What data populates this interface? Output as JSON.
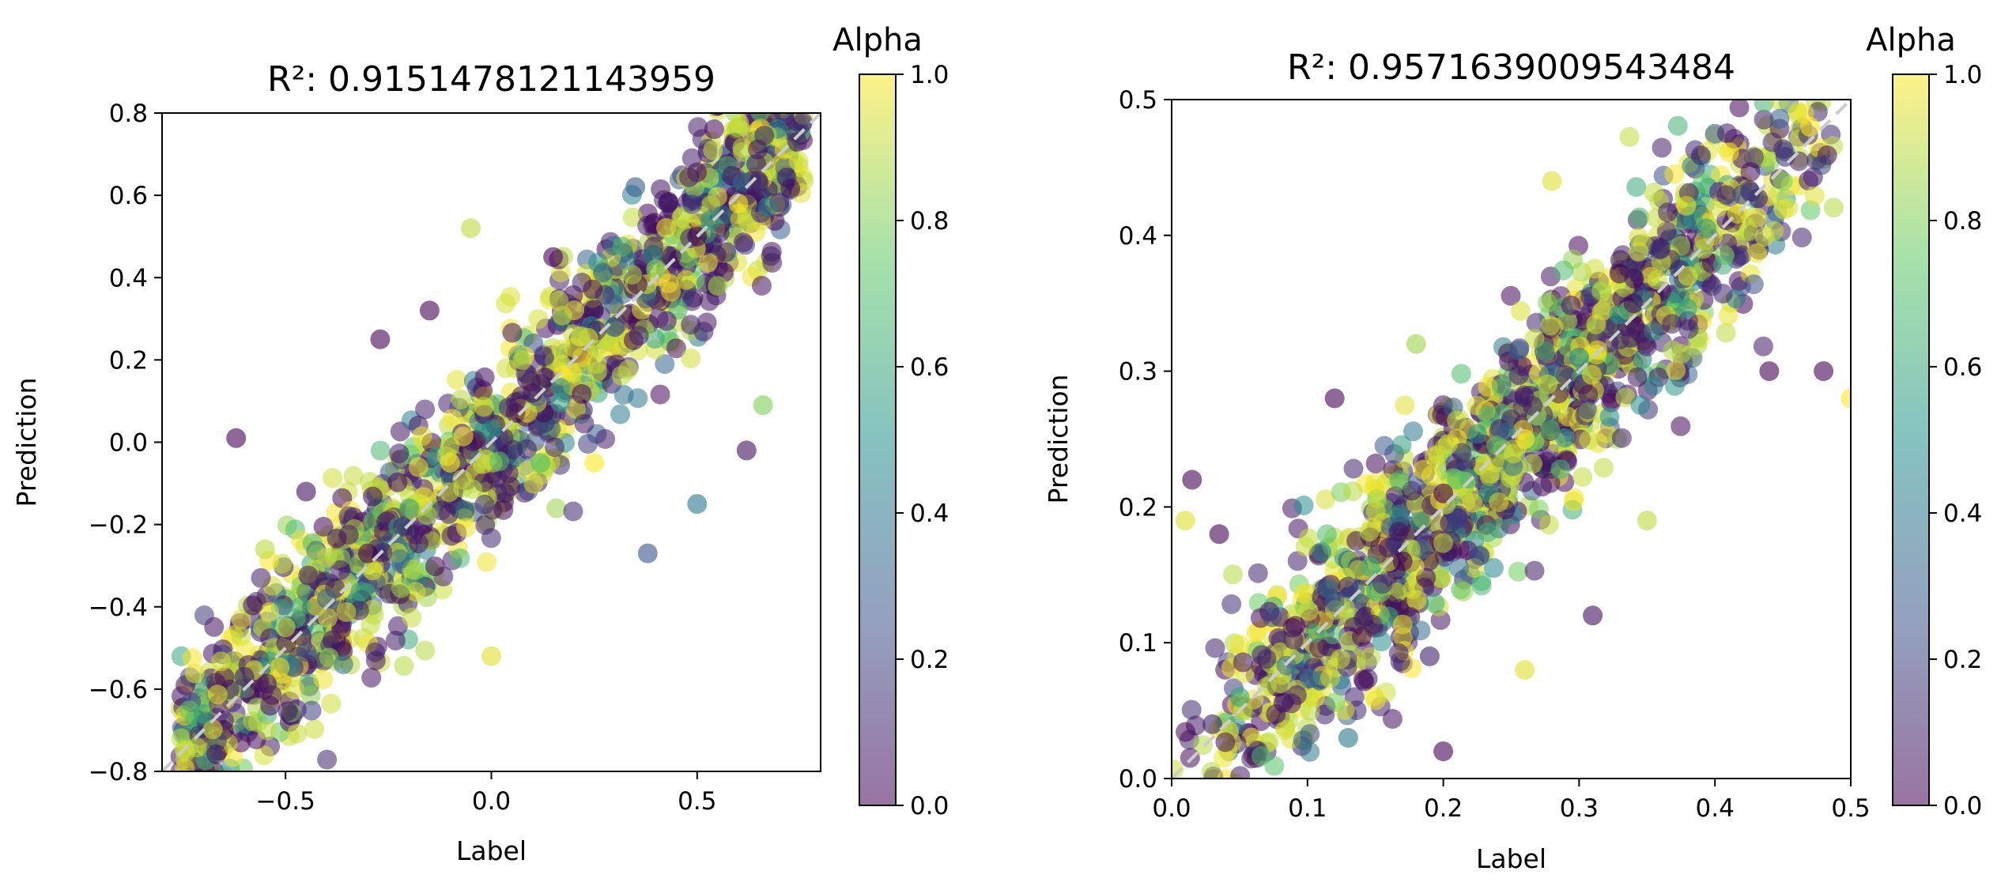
{
  "chart_data": [
    {
      "type": "scatter",
      "title": "R²: 0.9151478121143959",
      "xlabel": "Label",
      "ylabel": "Prediction",
      "xlim": [
        -0.8,
        0.8
      ],
      "ylim": [
        -0.8,
        0.8
      ],
      "x_ticks": [
        -0.5,
        0.0,
        0.5
      ],
      "x_tick_labels": [
        "−0.5",
        "0.0",
        "0.5"
      ],
      "y_ticks": [
        -0.8,
        -0.6,
        -0.4,
        -0.2,
        0.0,
        0.2,
        0.4,
        0.6,
        0.8
      ],
      "y_tick_labels": [
        "−0.8",
        "−0.6",
        "−0.4",
        "−0.2",
        "0.0",
        "0.2",
        "0.4",
        "0.6",
        "0.8"
      ],
      "reference_line": {
        "from": [
          -0.8,
          -0.8
        ],
        "to": [
          0.8,
          0.8
        ],
        "style": "dashed",
        "color": "#cccccc"
      },
      "colorbar": {
        "label": "Alpha",
        "range": [
          0.0,
          1.0
        ],
        "ticks": [
          0.0,
          0.2,
          0.4,
          0.6,
          0.8,
          1.0
        ],
        "tick_labels": [
          "0.0",
          "0.2",
          "0.4",
          "0.6",
          "0.8",
          "1.0"
        ],
        "colormap": "viridis"
      },
      "points": [
        [
          -0.6,
          -0.57,
          0.1
        ],
        [
          -0.5,
          -0.45,
          0.9
        ],
        [
          -0.4,
          -0.38,
          0.3
        ],
        [
          -0.3,
          -0.27,
          0.0
        ],
        [
          -0.2,
          -0.16,
          0.7
        ],
        [
          -0.1,
          -0.05,
          1.0
        ],
        [
          0.0,
          0.03,
          0.5
        ],
        [
          0.1,
          0.12,
          0.05
        ],
        [
          0.2,
          0.23,
          0.95
        ],
        [
          0.3,
          0.28,
          0.2
        ],
        [
          0.4,
          0.42,
          0.8
        ],
        [
          0.5,
          0.5,
          0.0
        ],
        [
          0.6,
          0.58,
          1.0
        ],
        [
          -0.7,
          -0.66,
          0.6
        ],
        [
          0.65,
          0.63,
          0.1
        ],
        [
          -0.62,
          0.01,
          0.0
        ],
        [
          -0.27,
          0.25,
          0.0
        ],
        [
          -0.15,
          0.32,
          0.0
        ],
        [
          0.5,
          -0.15,
          0.4
        ],
        [
          0.62,
          -0.02,
          0.05
        ],
        [
          0.66,
          0.09,
          0.8
        ],
        [
          0.38,
          -0.27,
          0.25
        ],
        [
          0.0,
          -0.52,
          0.95
        ],
        [
          -0.55,
          -0.26,
          0.9
        ],
        [
          0.25,
          -0.05,
          1.0
        ],
        [
          -0.45,
          -0.12,
          0.05
        ],
        [
          0.15,
          0.45,
          0.0
        ],
        [
          -0.05,
          0.52,
          0.9
        ],
        [
          0.35,
          0.62,
          0.3
        ],
        [
          0.55,
          0.38,
          0.85
        ]
      ]
    },
    {
      "type": "scatter",
      "title": "R²: 0.9571639009543484",
      "xlabel": "Label",
      "ylabel": "Prediction",
      "xlim": [
        0.0,
        0.5
      ],
      "ylim": [
        0.0,
        0.5
      ],
      "x_ticks": [
        0.0,
        0.1,
        0.2,
        0.3,
        0.4,
        0.5
      ],
      "x_tick_labels": [
        "0.0",
        "0.1",
        "0.2",
        "0.3",
        "0.4",
        "0.5"
      ],
      "y_ticks": [
        0.0,
        0.1,
        0.2,
        0.3,
        0.4,
        0.5
      ],
      "y_tick_labels": [
        "0.0",
        "0.1",
        "0.2",
        "0.3",
        "0.4",
        "0.5"
      ],
      "reference_line": {
        "from": [
          0.0,
          0.0
        ],
        "to": [
          0.5,
          0.5
        ],
        "style": "dashed",
        "color": "#cccccc"
      },
      "colorbar": {
        "label": "Alpha",
        "range": [
          0.0,
          1.0
        ],
        "ticks": [
          0.0,
          0.2,
          0.4,
          0.6,
          0.8,
          1.0
        ],
        "tick_labels": [
          "0.0",
          "0.2",
          "0.4",
          "0.6",
          "0.8",
          "1.0"
        ],
        "colormap": "viridis"
      },
      "points": [
        [
          0.03,
          0.04,
          0.1
        ],
        [
          0.08,
          0.07,
          0.9
        ],
        [
          0.12,
          0.13,
          0.3
        ],
        [
          0.17,
          0.16,
          0.0
        ],
        [
          0.21,
          0.22,
          0.7
        ],
        [
          0.26,
          0.25,
          1.0
        ],
        [
          0.3,
          0.31,
          0.5
        ],
        [
          0.34,
          0.35,
          0.05
        ],
        [
          0.38,
          0.37,
          0.95
        ],
        [
          0.42,
          0.43,
          0.2
        ],
        [
          0.45,
          0.44,
          0.8
        ],
        [
          0.2,
          0.21,
          0.0
        ],
        [
          0.47,
          0.48,
          1.0
        ],
        [
          0.05,
          0.06,
          0.6
        ],
        [
          0.36,
          0.39,
          0.1
        ],
        [
          0.015,
          0.22,
          0.0
        ],
        [
          0.01,
          0.19,
          0.95
        ],
        [
          0.035,
          0.18,
          0.0
        ],
        [
          0.28,
          0.44,
          0.95
        ],
        [
          0.12,
          0.28,
          0.0
        ],
        [
          0.18,
          0.32,
          0.85
        ],
        [
          0.2,
          0.02,
          0.0
        ],
        [
          0.19,
          0.09,
          0.1
        ],
        [
          0.26,
          0.08,
          0.95
        ],
        [
          0.31,
          0.12,
          0.05
        ],
        [
          0.44,
          0.3,
          0.0
        ],
        [
          0.48,
          0.3,
          0.0
        ],
        [
          0.5,
          0.28,
          1.0
        ],
        [
          0.13,
          0.03,
          0.4
        ],
        [
          0.35,
          0.19,
          0.9
        ]
      ]
    }
  ]
}
